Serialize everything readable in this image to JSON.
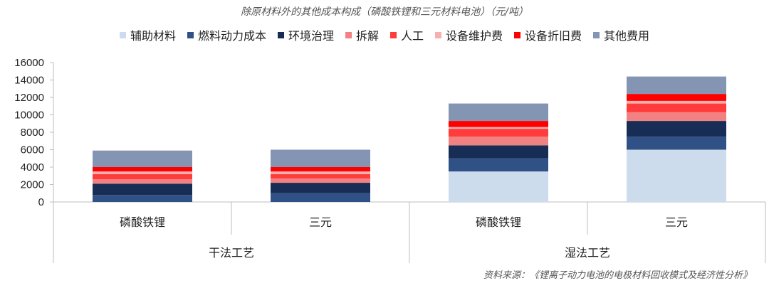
{
  "chart_data": {
    "type": "bar",
    "stacked": true,
    "title": "除原材料外的其他成本构成（磷酸铁锂和三元材料电池）（元/吨）",
    "categories": [
      "磷酸铁锂",
      "三元",
      "磷酸铁锂",
      "三元"
    ],
    "groups": [
      {
        "label": "干法工艺",
        "categories": [
          0,
          1
        ]
      },
      {
        "label": "湿法工艺",
        "categories": [
          2,
          3
        ]
      }
    ],
    "ylim": [
      0,
      16000
    ],
    "yticks": [
      "0",
      "2000",
      "4000",
      "6000",
      "8000",
      "10000",
      "12000",
      "14000",
      "16000"
    ],
    "legend_position": "top",
    "grid": false,
    "series": [
      {
        "name": "辅助材料",
        "color": "#cddcec",
        "values": [
          0,
          0,
          3500,
          6000
        ]
      },
      {
        "name": "燃料动力成本",
        "color": "#2f5185",
        "values": [
          800,
          1000,
          1500,
          1500
        ]
      },
      {
        "name": "环境治理",
        "color": "#182d55",
        "values": [
          1300,
          1200,
          1500,
          1800
        ]
      },
      {
        "name": "拆解",
        "color": "#f28282",
        "values": [
          500,
          500,
          1000,
          1000
        ]
      },
      {
        "name": "人工",
        "color": "#ff3b3b",
        "values": [
          600,
          500,
          900,
          1000
        ]
      },
      {
        "name": "设备维护费",
        "color": "#f5b0b0",
        "values": [
          300,
          300,
          200,
          300
        ]
      },
      {
        "name": "设备折旧费",
        "color": "#ff0000",
        "values": [
          500,
          500,
          700,
          800
        ]
      },
      {
        "name": "其他费用",
        "color": "#8495b4",
        "values": [
          1900,
          2000,
          2000,
          2000
        ]
      }
    ]
  },
  "source": "资料来源：《锂离子动力电池的电极材料回收模式及经济性分析》"
}
